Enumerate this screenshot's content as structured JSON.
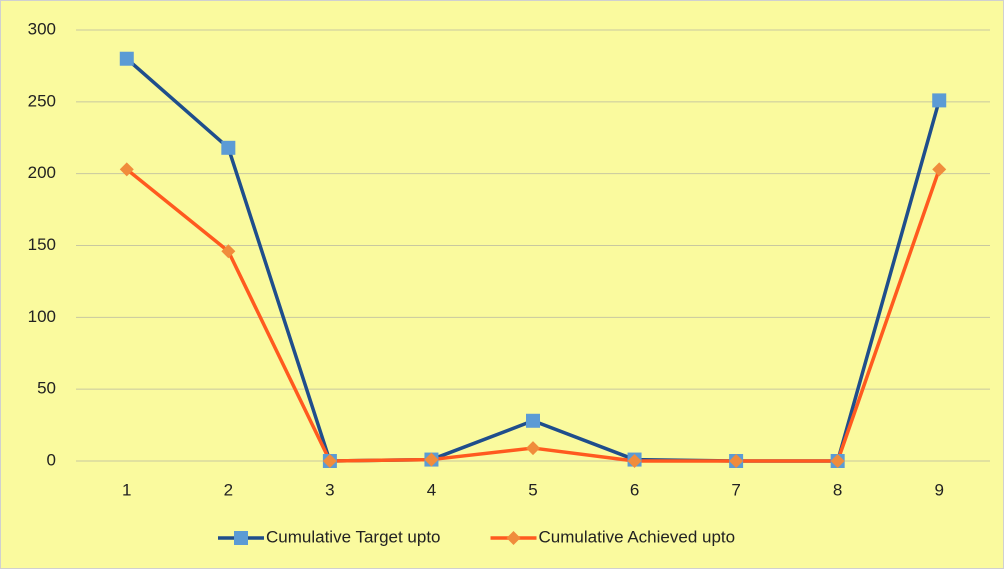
{
  "chart_data": {
    "type": "line",
    "categories": [
      "1",
      "2",
      "3",
      "4",
      "5",
      "6",
      "7",
      "8",
      "9"
    ],
    "series": [
      {
        "name": "Cumulative Target upto",
        "color": "#1f4e8c",
        "marker_color": "#5b9bd5",
        "marker": "square",
        "values": [
          280,
          218,
          0,
          1,
          28,
          1,
          0,
          0,
          251
        ]
      },
      {
        "name": "Cumulative Achieved upto",
        "color": "#ff5a1f",
        "marker_color": "#f08c3c",
        "marker": "diamond",
        "values": [
          203,
          146,
          0,
          1,
          9,
          0,
          0,
          0,
          203
        ]
      }
    ],
    "ylim": [
      0,
      300
    ],
    "yticks": [
      0,
      50,
      100,
      150,
      200,
      250,
      300
    ],
    "grid": true,
    "legend": "bottom",
    "background": "#fafa9e"
  }
}
